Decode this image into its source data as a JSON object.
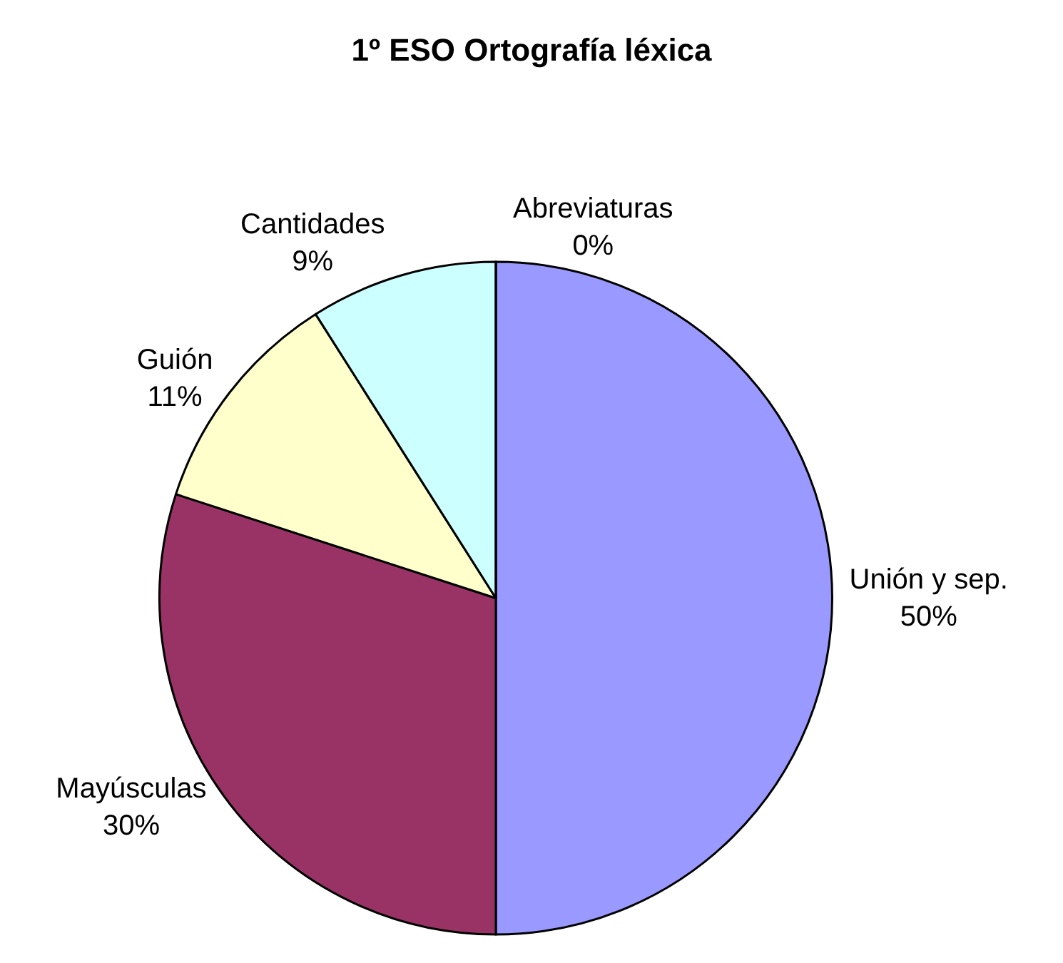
{
  "chart_data": {
    "type": "pie",
    "title": "1º ESO Ortografía léxica",
    "categories": [
      "Unión y sep.",
      "Mayúsculas",
      "Guión",
      "Cantidades",
      "Abreviaturas"
    ],
    "values": [
      50,
      30,
      11,
      9,
      0
    ],
    "value_labels": [
      "50%",
      "30%",
      "11%",
      "9%",
      "0%"
    ],
    "colors": [
      "#9999ff",
      "#993366",
      "#ffffcc",
      "#ccffff",
      "#660066"
    ],
    "legend": false
  }
}
